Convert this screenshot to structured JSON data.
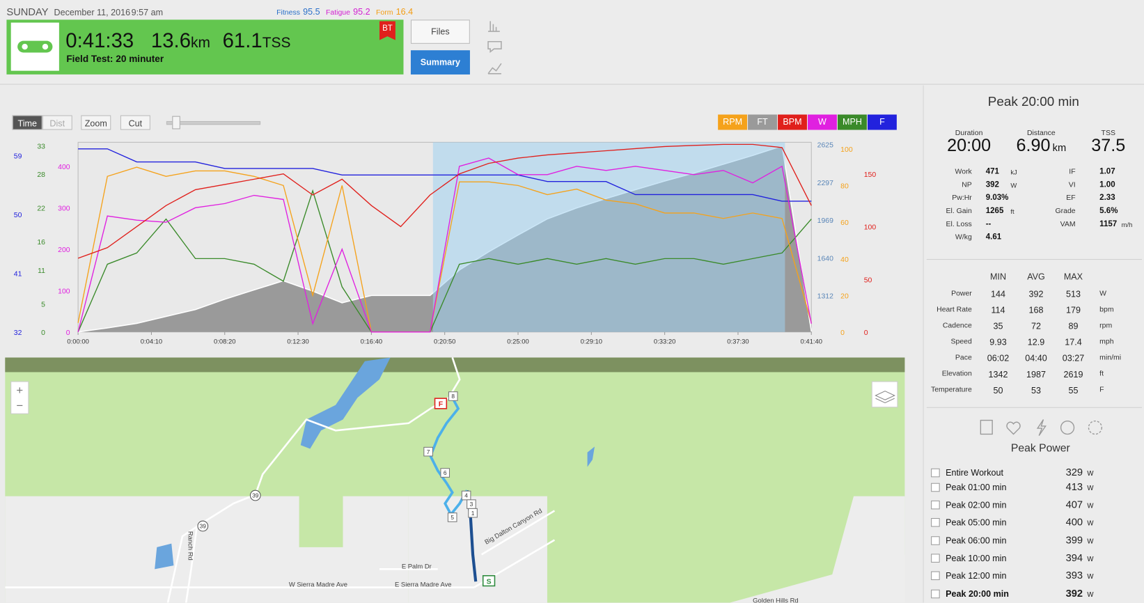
{
  "header": {
    "day": "SUNDAY",
    "date": "December 11, 2016",
    "time": "9:57 am",
    "metrics": [
      {
        "label": "Fitness",
        "value": "95.5",
        "color": "#2a6fc9"
      },
      {
        "label": "Fatigue",
        "value": "95.2",
        "color": "#d21fd2"
      },
      {
        "label": "Form",
        "value": "16.4",
        "color": "#f39c12"
      }
    ],
    "duration": "0:41:33",
    "distance": "13.6",
    "distance_unit": "km",
    "tss": "61.1",
    "tss_unit": "TSS",
    "workout_title": "Field Test: 20 minuter",
    "badge": "BT",
    "buttons": [
      "Files",
      "Summary"
    ]
  },
  "toolbar": {
    "buttons": [
      "Time",
      "Dist",
      "Zoom",
      "Cut"
    ]
  },
  "chart_data": {
    "type": "line",
    "x": [
      0,
      100,
      200,
      300,
      400,
      500,
      600,
      700,
      800,
      900,
      1000,
      1100,
      1200,
      1300,
      1400,
      1500,
      1600,
      1700,
      1800,
      1900,
      2000,
      2100,
      2200,
      2300,
      2400,
      2500
    ],
    "xlim": [
      0,
      2500
    ],
    "xticks": [
      {
        "value": 0,
        "label": "0:00:00"
      },
      {
        "value": 250,
        "label": "0:04:10"
      },
      {
        "value": 500,
        "label": "0:08:20"
      },
      {
        "value": 750,
        "label": "0:12:30"
      },
      {
        "value": 1000,
        "label": "0:16:40"
      },
      {
        "value": 1250,
        "label": "0:20:50"
      },
      {
        "value": 1500,
        "label": "0:25:00"
      },
      {
        "value": 1750,
        "label": "0:29:10"
      },
      {
        "value": 2000,
        "label": "0:33:20"
      },
      {
        "value": 2250,
        "label": "0:37:30"
      },
      {
        "value": 2500,
        "label": "0:41:40"
      }
    ],
    "selection": [
      1210,
      2410
    ],
    "series": [
      {
        "name": "RPM",
        "color": "#f5a21b",
        "side": "right",
        "ylim": [
          0,
          103.6
        ],
        "yticks": [
          0,
          20,
          40,
          60,
          80,
          100
        ],
        "values": [
          5,
          85,
          90,
          85,
          88,
          88,
          85,
          80,
          20,
          80,
          0,
          0,
          0,
          82,
          82,
          80,
          75,
          78,
          72,
          70,
          65,
          65,
          62,
          65,
          62,
          5
        ]
      },
      {
        "name": "FT",
        "color": "#9a9a9a",
        "side": "right",
        "style": "area",
        "ylim": [
          995,
          2644
        ],
        "yticks": [
          1312,
          1640,
          1969,
          2297,
          2625
        ],
        "values": [
          995,
          1030,
          1070,
          1130,
          1190,
          1280,
          1360,
          1440,
          1350,
          1249,
          1312,
          1312,
          1312,
          1534,
          1692,
          1838,
          1978,
          2073,
          2155,
          2231,
          2307,
          2377,
          2453,
          2529,
          2612,
          1000
        ]
      },
      {
        "name": "BPM",
        "color": "#e0201c",
        "side": "right",
        "ylim": [
          0,
          180
        ],
        "yticks": [
          0,
          50,
          100,
          150
        ],
        "values": [
          70,
          80,
          100,
          120,
          135,
          140,
          145,
          150,
          130,
          145,
          120,
          100,
          130,
          150,
          160,
          165,
          168,
          170,
          172,
          174,
          176,
          177,
          178,
          178,
          175,
          120
        ]
      },
      {
        "name": "W",
        "color": "#e020e0",
        "side": "left",
        "ylim": [
          0,
          458
        ],
        "yticks": [
          0,
          100,
          200,
          300,
          400
        ],
        "values": [
          0,
          280,
          270,
          265,
          300,
          310,
          330,
          320,
          20,
          200,
          0,
          0,
          0,
          400,
          420,
          380,
          380,
          400,
          390,
          400,
          390,
          380,
          390,
          360,
          400,
          20
        ]
      },
      {
        "name": "MPH",
        "color": "#3a8a2a",
        "side": "left",
        "ylim": [
          0,
          33.6
        ],
        "yticks": [
          0,
          5,
          11,
          16,
          22,
          28,
          33
        ],
        "values": [
          0,
          12,
          14,
          20,
          13,
          13,
          12,
          9,
          25,
          8,
          0,
          0,
          0,
          12,
          13,
          12,
          13,
          12,
          13,
          12,
          13,
          13,
          12,
          13,
          14,
          20
        ]
      },
      {
        "name": "F",
        "color": "#2222dd",
        "side": "left",
        "ylim": [
          32,
          61
        ],
        "yticks": [
          32,
          41,
          50,
          59
        ],
        "values": [
          60,
          60,
          58,
          58,
          58,
          57,
          57,
          57,
          57,
          56,
          56,
          56,
          56,
          56,
          56,
          56,
          55,
          55,
          55,
          53,
          53,
          53,
          53,
          53,
          52,
          52
        ]
      }
    ]
  },
  "sidebar": {
    "title": "Peak 20:00 min",
    "summary": [
      {
        "label": "Duration",
        "value": "20:00"
      },
      {
        "label": "Distance",
        "value": "6.90",
        "unit": "km"
      },
      {
        "label": "TSS",
        "value": "37.5"
      }
    ],
    "stats_left": [
      {
        "label": "Work",
        "value": "471",
        "unit": "kJ"
      },
      {
        "label": "NP",
        "value": "392",
        "unit": "W"
      },
      {
        "label": "Pw:Hr",
        "value": "9.03%"
      },
      {
        "label": "El. Gain",
        "value": "1265",
        "unit": "ft"
      },
      {
        "label": "El. Loss",
        "value": "--"
      },
      {
        "label": "W/kg",
        "value": "4.61"
      }
    ],
    "stats_right": [
      {
        "label": "IF",
        "value": "1.07"
      },
      {
        "label": "VI",
        "value": "1.00"
      },
      {
        "label": "EF",
        "value": "2.33"
      },
      {
        "label": "Grade",
        "value": "5.6%"
      },
      {
        "label": "VAM",
        "value": "1157",
        "unit": "m/h"
      }
    ],
    "table": {
      "columns": [
        "MIN",
        "AVG",
        "MAX"
      ],
      "rows": [
        {
          "label": "Power",
          "values": [
            "144",
            "392",
            "513"
          ],
          "unit": "W"
        },
        {
          "label": "Heart Rate",
          "values": [
            "114",
            "168",
            "179"
          ],
          "unit": "bpm"
        },
        {
          "label": "Cadence",
          "values": [
            "35",
            "72",
            "89"
          ],
          "unit": "rpm"
        },
        {
          "label": "Speed",
          "values": [
            "9.93",
            "12.9",
            "17.4"
          ],
          "unit": "mph"
        },
        {
          "label": "Pace",
          "values": [
            "06:02",
            "04:40",
            "03:27"
          ],
          "unit": "min/mi"
        },
        {
          "label": "Elevation",
          "values": [
            "1342",
            "1987",
            "2619"
          ],
          "unit": "ft"
        },
        {
          "label": "Temperature",
          "values": [
            "50",
            "53",
            "55"
          ],
          "unit": "F"
        }
      ]
    },
    "peak_power": {
      "title": "Peak Power",
      "unit": "w",
      "rows": [
        {
          "label": "Entire Workout",
          "value": "329"
        },
        {
          "label": "Peak 01:00 min",
          "value": "413"
        },
        {
          "label": "Peak 02:00 min",
          "value": "407"
        },
        {
          "label": "Peak 05:00 min",
          "value": "400"
        },
        {
          "label": "Peak 06:00 min",
          "value": "399"
        },
        {
          "label": "Peak 10:00 min",
          "value": "394"
        },
        {
          "label": "Peak 12:00 min",
          "value": "393"
        },
        {
          "label": "Peak 20:00 min",
          "value": "392"
        }
      ]
    }
  },
  "map": {
    "zoom": [
      "+",
      "−"
    ],
    "labels": [
      "W Sierra Madre Ave",
      "E Sierra Madre Ave",
      "E Palm Dr",
      "Big Dalton Canyon Rd",
      "Ranch Rd",
      "Golden Hills Rd"
    ],
    "shields": [
      "39",
      "39"
    ],
    "markers": [
      "8",
      "7",
      "6",
      "5",
      "4",
      "3",
      "1"
    ],
    "flags": [
      "F",
      "S"
    ]
  }
}
